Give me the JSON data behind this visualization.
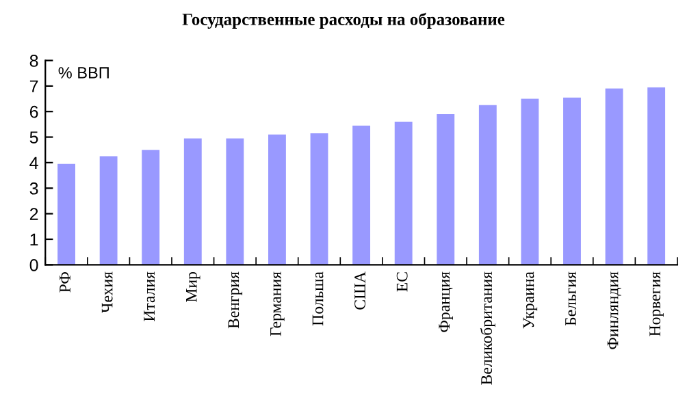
{
  "chart_data": {
    "type": "bar",
    "title": "Государственные расходы на образование",
    "ylabel": "% ВВП",
    "categories": [
      "РФ",
      "Чехия",
      "Италия",
      "Мир",
      "Венгрия",
      "Германия",
      "Польша",
      "США",
      "ЕС",
      "Франция",
      "Великобритания",
      "Украина",
      "Бельгия",
      "Финляндия",
      "Норвегия"
    ],
    "values": [
      3.95,
      4.25,
      4.5,
      4.95,
      4.95,
      5.1,
      5.15,
      5.45,
      5.6,
      5.9,
      6.25,
      6.5,
      6.55,
      6.9,
      6.95
    ],
    "color": "#9999ff",
    "ylim": [
      0,
      8
    ],
    "yticks": [
      0,
      1,
      2,
      3,
      4,
      5,
      6,
      7,
      8
    ],
    "grid": false,
    "legend": false
  }
}
